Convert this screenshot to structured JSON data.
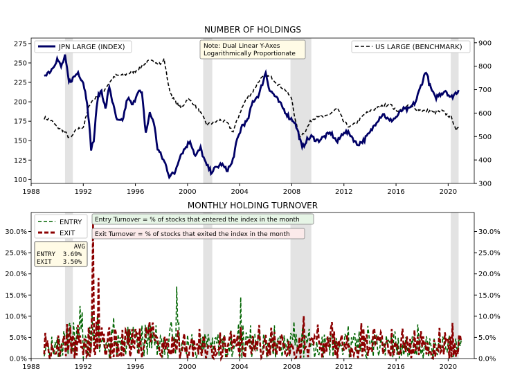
{
  "chart_data": [
    {
      "type": "line",
      "title": "NUMBER OF HOLDINGS",
      "xlim": [
        1988,
        2022
      ],
      "x_ticks": [
        "1988",
        "1992",
        "1996",
        "2000",
        "2004",
        "2008",
        "2012",
        "2016",
        "2020"
      ],
      "y_left": {
        "ylim": [
          95,
          282
        ],
        "ticks": [
          100,
          125,
          150,
          175,
          200,
          225,
          250,
          275
        ]
      },
      "y_right": {
        "ylim": [
          300,
          920
        ],
        "ticks": [
          300,
          400,
          500,
          600,
          700,
          800,
          900
        ]
      },
      "shaded_periods": [
        [
          1990.6,
          1991.2
        ],
        [
          2001.2,
          2001.9
        ],
        [
          2007.9,
          2009.5
        ],
        [
          2020.2,
          2020.8
        ]
      ],
      "series": [
        {
          "name": "JPN LARGE (INDEX)",
          "axis": "left",
          "color": "#000066",
          "style": "solid",
          "x": [
            1989.0,
            1989.5,
            1990.0,
            1990.3,
            1990.6,
            1990.9,
            1991.2,
            1991.6,
            1992.0,
            1992.3,
            1992.6,
            1992.8,
            1993.1,
            1993.4,
            1993.7,
            1994.0,
            1994.3,
            1994.6,
            1995.0,
            1995.4,
            1995.8,
            1996.2,
            1996.5,
            1996.8,
            1997.1,
            1997.4,
            1997.7,
            1998.0,
            1998.3,
            1998.6,
            1999.0,
            1999.4,
            1999.8,
            2000.2,
            2000.6,
            2001.0,
            2001.4,
            2001.8,
            2002.2,
            2002.6,
            2003.0,
            2003.4,
            2003.8,
            2004.2,
            2004.6,
            2005.0,
            2005.5,
            2006.0,
            2006.3,
            2006.6,
            2007.0,
            2007.4,
            2007.8,
            2008.2,
            2008.5,
            2008.8,
            2009.1,
            2009.5,
            2010.0,
            2010.5,
            2011.0,
            2011.5,
            2012.0,
            2012.5,
            2013.0,
            2013.5,
            2014.0,
            2014.5,
            2015.0,
            2015.5,
            2016.0,
            2016.5,
            2017.0,
            2017.5,
            2018.0,
            2018.3,
            2018.6,
            2019.0,
            2019.4,
            2019.8,
            2020.2,
            2020.5,
            2020.8
          ],
          "values": [
            235,
            240,
            255,
            245,
            258,
            225,
            230,
            238,
            225,
            200,
            140,
            150,
            205,
            215,
            190,
            220,
            195,
            175,
            175,
            205,
            195,
            215,
            210,
            160,
            185,
            175,
            140,
            130,
            120,
            105,
            108,
            130,
            140,
            150,
            130,
            140,
            120,
            110,
            115,
            120,
            112,
            120,
            150,
            170,
            175,
            200,
            210,
            238,
            215,
            210,
            200,
            190,
            180,
            175,
            160,
            140,
            150,
            155,
            150,
            155,
            160,
            148,
            162,
            158,
            145,
            150,
            160,
            175,
            185,
            175,
            180,
            190,
            190,
            200,
            225,
            240,
            220,
            205,
            210,
            215,
            205,
            210,
            215
          ]
        },
        {
          "name": "US LARGE (BENCHMARK)",
          "axis": "right",
          "color": "#000000",
          "style": "dashed",
          "x": [
            1989.0,
            1989.5,
            1990.0,
            1990.5,
            1991.0,
            1991.5,
            1992.0,
            1992.5,
            1993.0,
            1993.5,
            1994.0,
            1994.5,
            1995.0,
            1995.5,
            1996.0,
            1996.5,
            1997.0,
            1997.5,
            1998.0,
            1998.2,
            1998.6,
            1999.0,
            1999.5,
            2000.0,
            2000.5,
            2001.0,
            2001.5,
            2002.0,
            2002.5,
            2003.0,
            2003.5,
            2004.0,
            2004.5,
            2005.0,
            2005.5,
            2006.0,
            2006.5,
            2007.0,
            2007.5,
            2008.0,
            2008.3,
            2008.6,
            2009.0,
            2009.5,
            2010.0,
            2010.5,
            2011.0,
            2011.5,
            2012.0,
            2012.5,
            2013.0,
            2013.5,
            2014.0,
            2014.5,
            2015.0,
            2015.5,
            2016.0,
            2016.5,
            2017.0,
            2017.5,
            2018.0,
            2018.5,
            2019.0,
            2019.5,
            2020.0,
            2020.3,
            2020.6,
            2020.8
          ],
          "values": [
            580,
            570,
            540,
            525,
            490,
            530,
            540,
            640,
            670,
            690,
            730,
            760,
            760,
            770,
            780,
            800,
            820,
            820,
            810,
            830,
            700,
            650,
            620,
            660,
            640,
            600,
            550,
            560,
            570,
            560,
            520,
            600,
            660,
            690,
            740,
            760,
            750,
            720,
            700,
            660,
            560,
            500,
            520,
            570,
            590,
            580,
            600,
            620,
            560,
            540,
            560,
            590,
            610,
            620,
            630,
            640,
            610,
            620,
            630,
            620,
            610,
            610,
            600,
            610,
            590,
            580,
            520,
            540
          ]
        }
      ],
      "legend": [
        {
          "label": "JPN LARGE (INDEX)",
          "position": "upper-left"
        },
        {
          "label": "US LARGE (BENCHMARK)",
          "position": "upper-right"
        }
      ],
      "annotation": [
        "Note: Dual Linear Y-Axes",
        "Logarithmically Proportionate"
      ]
    },
    {
      "type": "line",
      "title": "MONTHLY HOLDING TURNOVER",
      "xlim": [
        1988,
        2022
      ],
      "x_ticks": [
        "1988",
        "1992",
        "1996",
        "2000",
        "2004",
        "2008",
        "2012",
        "2016",
        "2020"
      ],
      "ylim": [
        0,
        34.5
      ],
      "y_ticks": [
        "0.0%",
        "5.0%",
        "10.0%",
        "15.0%",
        "20.0%",
        "25.0%",
        "30.0%"
      ],
      "y_tick_values": [
        0,
        5,
        10,
        15,
        20,
        25,
        30
      ],
      "shaded_periods": [
        [
          1990.6,
          1991.2
        ],
        [
          2001.2,
          2001.9
        ],
        [
          2007.9,
          2009.5
        ],
        [
          2020.2,
          2020.8
        ]
      ],
      "series": [
        {
          "name": "ENTRY",
          "color": "#006400",
          "style": "dashed",
          "average": "3.69%",
          "mean_value": 3.69
        },
        {
          "name": "EXIT",
          "color": "#8b0000",
          "style": "dashed",
          "average": "3.50%",
          "mean_value": 3.5
        }
      ],
      "spikes": [
        {
          "series": "EXIT",
          "x": 1992.75,
          "y": 32
        },
        {
          "series": "EXIT",
          "x": 1993.2,
          "y": 19
        },
        {
          "series": "ENTRY",
          "x": 1999.2,
          "y": 17
        },
        {
          "series": "ENTRY",
          "x": 2004.1,
          "y": 14.5
        },
        {
          "series": "ENTRY",
          "x": 1991.9,
          "y": 11
        },
        {
          "series": "EXIT",
          "x": 2008.9,
          "y": 10
        }
      ],
      "annotations": [
        "Entry Turnover = % of stocks that entered the index in the month",
        "Exit Turnover = % of stocks that exited the index in the month"
      ],
      "avg_box": {
        "header": "AVG",
        "rows": [
          "ENTRY  3.69%",
          "EXIT   3.50%"
        ]
      }
    }
  ]
}
